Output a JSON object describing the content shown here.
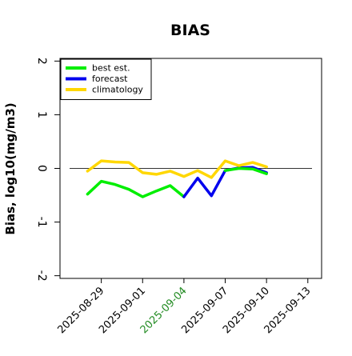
{
  "chart_data": {
    "type": "line",
    "title": "BIAS",
    "xlabel": "",
    "ylabel": "Bias, log10(mg/m3)",
    "ylim": [
      -2.05,
      2.05
    ],
    "yticks": [
      -2,
      -1,
      0,
      1,
      2
    ],
    "yticklabels": [
      "-2",
      "-1",
      "0",
      "1",
      "2"
    ],
    "xlim": [
      "2025-08-26",
      "2025-09-14"
    ],
    "xticks": [
      "2025-08-29",
      "2025-09-01",
      "2025-09-04",
      "2025-09-07",
      "2025-09-10",
      "2025-09-13"
    ],
    "xtick_colors": [
      "#000000",
      "#000000",
      "#228B22",
      "#000000",
      "#000000",
      "#000000"
    ],
    "reference_line": 0,
    "grid": false,
    "legend_position": "top-left",
    "series": [
      {
        "name": "best est.",
        "color": "#00ee00",
        "x": [
          "2025-08-28",
          "2025-08-29",
          "2025-08-30",
          "2025-08-31",
          "2025-09-01",
          "2025-09-02",
          "2025-09-03",
          "2025-09-04"
        ],
        "y": [
          -0.48,
          -0.24,
          -0.3,
          -0.39,
          -0.53,
          -0.42,
          -0.32,
          -0.53
        ]
      },
      {
        "name": "forecast",
        "color": "#0000ee",
        "x": [
          "2025-09-04",
          "2025-09-05",
          "2025-09-06",
          "2025-09-07",
          "2025-09-08",
          "2025-09-09",
          "2025-09-10"
        ],
        "y": [
          -0.53,
          -0.18,
          -0.51,
          -0.04,
          0.01,
          0.02,
          -0.08
        ]
      },
      {
        "name": "climatology",
        "color": "#ffd700",
        "x": [
          "2025-08-28",
          "2025-08-29",
          "2025-08-30",
          "2025-08-31",
          "2025-09-01",
          "2025-09-02",
          "2025-09-03",
          "2025-09-04",
          "2025-09-05",
          "2025-09-06",
          "2025-09-07",
          "2025-09-08",
          "2025-09-09",
          "2025-09-10"
        ],
        "y": [
          -0.05,
          0.14,
          0.12,
          0.11,
          -0.08,
          -0.11,
          -0.05,
          -0.15,
          -0.04,
          -0.17,
          0.14,
          0.05,
          0.11,
          0.03
        ]
      },
      {
        "name": "",
        "color": "#00ee00",
        "x": [
          "2025-09-07",
          "2025-09-08",
          "2025-09-09",
          "2025-09-10"
        ],
        "y": [
          -0.04,
          0.0,
          -0.01,
          -0.1
        ]
      }
    ]
  }
}
